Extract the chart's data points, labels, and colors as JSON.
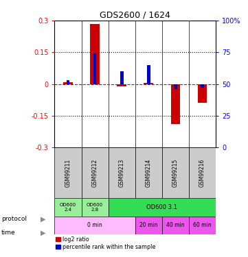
{
  "title": "GDS2600 / 1624",
  "samples": [
    "GSM99211",
    "GSM99212",
    "GSM99213",
    "GSM99214",
    "GSM99215",
    "GSM99216"
  ],
  "log2_ratios": [
    0.01,
    0.285,
    -0.01,
    0.005,
    -0.19,
    -0.09
  ],
  "percentile_ranks": [
    53,
    74,
    60,
    65,
    46,
    47
  ],
  "ylim_left": [
    -0.3,
    0.3
  ],
  "ylim_right": [
    0,
    100
  ],
  "yticks_left": [
    -0.3,
    -0.15,
    0,
    0.15,
    0.3
  ],
  "yticks_right": [
    0,
    25,
    50,
    75,
    100
  ],
  "ytick_labels_left": [
    "-0.3",
    "-0.15",
    "0",
    "0.15",
    "0.3"
  ],
  "ytick_labels_right": [
    "0",
    "25",
    "50",
    "75",
    "100%"
  ],
  "bar_color": "#cc0000",
  "pct_color": "#0000cc",
  "zero_line_color": "#cc0000",
  "dotted_line_color": "#000000",
  "header_color": "#cccccc",
  "legend_red": "log2 ratio",
  "legend_blue": "percentile rank within the sample",
  "bar_width": 0.35,
  "pct_bar_width": 0.12,
  "protocol_data": [
    [
      0,
      1,
      "OD600\n2.4",
      "#99ee99"
    ],
    [
      1,
      2,
      "OD600\n2.8",
      "#99ee99"
    ],
    [
      2,
      6,
      "OD600 3.1",
      "#33dd55"
    ]
  ],
  "time_data": [
    [
      0,
      3,
      "0 min",
      "#ffbbff"
    ],
    [
      3,
      4,
      "20 min",
      "#ee55ee"
    ],
    [
      4,
      5,
      "40 min",
      "#ee55ee"
    ],
    [
      5,
      6,
      "60 min",
      "#ee55ee"
    ]
  ]
}
